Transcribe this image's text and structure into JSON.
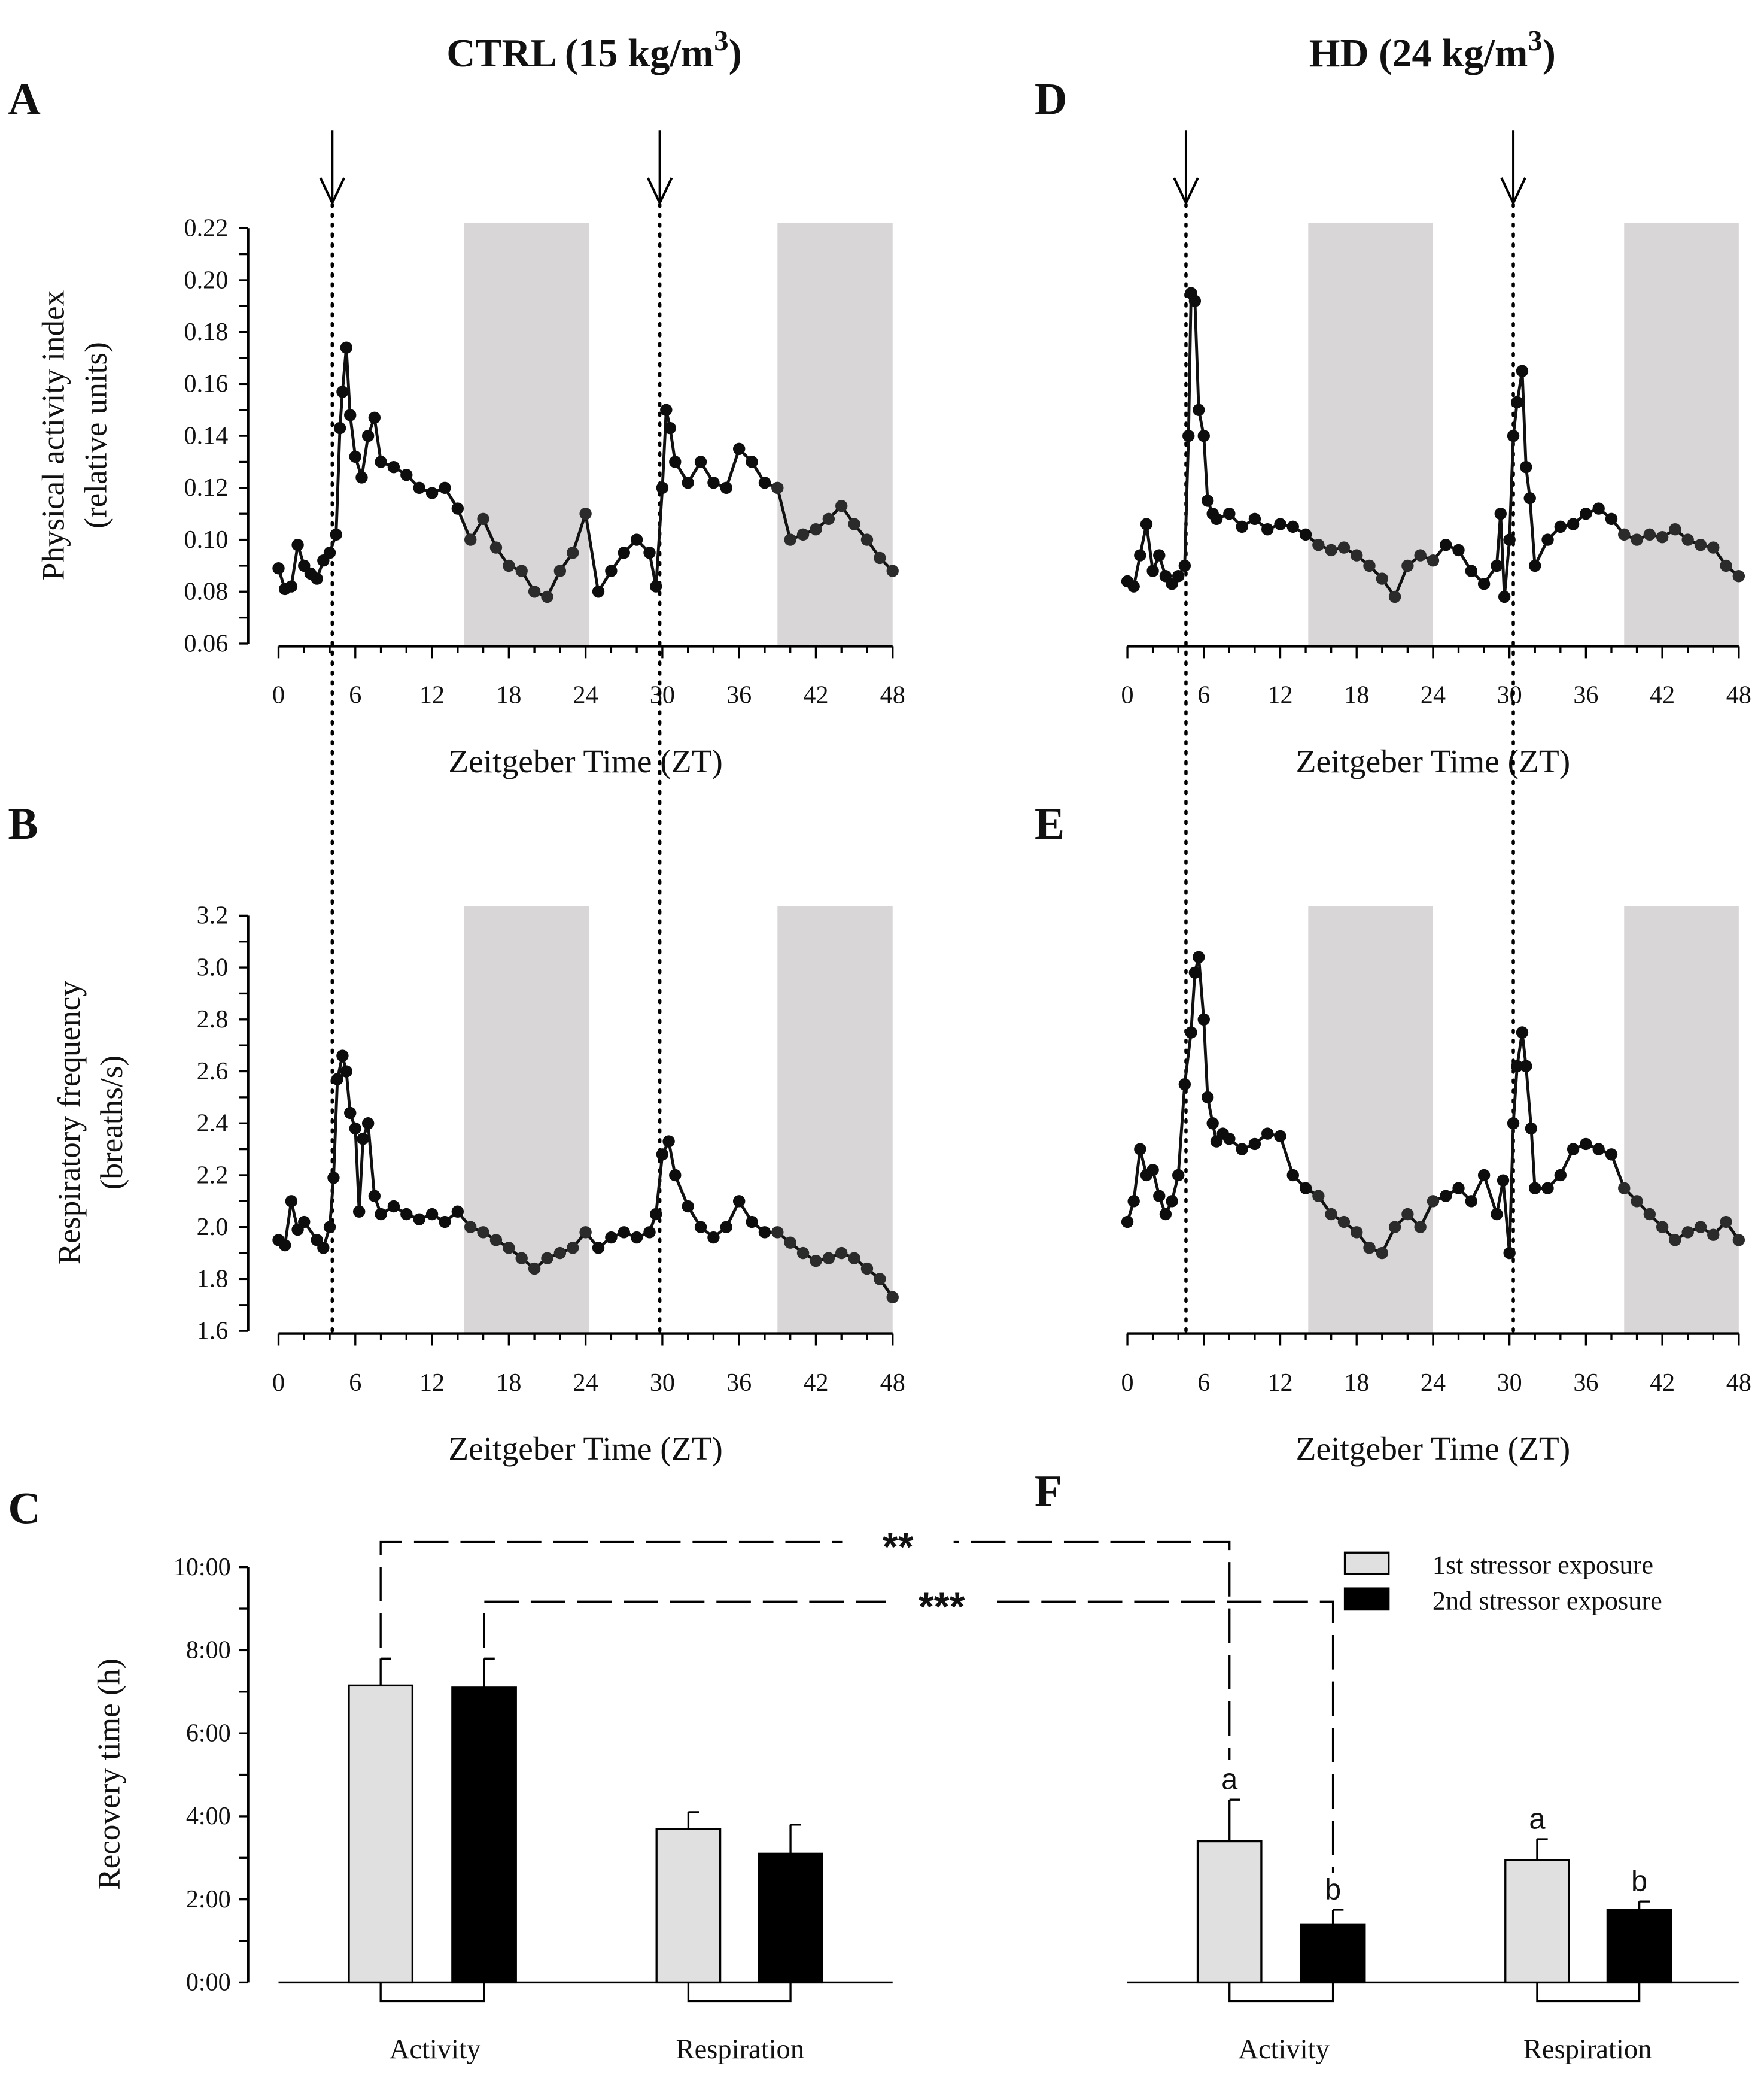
{
  "figure": {
    "columns": [
      {
        "title": "CTRL (15 kg/m",
        "sup": "3",
        "close": ")"
      },
      {
        "title": "HD (24 kg/m",
        "sup": "3",
        "close": ")"
      }
    ],
    "panel_letters": [
      "A",
      "B",
      "C",
      "D",
      "E",
      "F"
    ]
  },
  "chart_data": [
    {
      "id": "A",
      "type": "line",
      "group": "CTRL (15 kg/m3)",
      "ylabel": [
        "Physical activity index",
        "(relative units)"
      ],
      "xlabel": "Zeitgeber Time (ZT)",
      "ylim": [
        0.06,
        0.22
      ],
      "xlim": [
        0,
        48
      ],
      "yticks": [
        "0.06",
        "0.08",
        "0.10",
        "0.12",
        "0.14",
        "0.16",
        "0.18",
        "0.20",
        "0.22"
      ],
      "xticks": [
        "0",
        "6",
        "12",
        "18",
        "24",
        "30",
        "36",
        "42",
        "48"
      ],
      "dark_phase": [
        [
          14.5,
          24.3
        ],
        [
          39,
          48
        ]
      ],
      "stressor_times": [
        4.2,
        29.8
      ],
      "x": [
        0,
        0.5,
        1,
        1.5,
        2,
        2.5,
        3,
        3.5,
        4,
        4.5,
        4.8,
        5,
        5.3,
        5.6,
        6,
        6.5,
        7,
        7.5,
        8,
        9,
        10,
        11,
        12,
        13,
        14,
        15,
        16,
        17,
        18,
        19,
        20,
        21,
        22,
        23,
        24,
        25,
        26,
        27,
        28,
        29,
        29.5,
        30,
        30.3,
        30.6,
        31,
        32,
        33,
        34,
        35,
        36,
        37,
        38,
        39,
        40,
        41,
        42,
        43,
        44,
        45,
        46,
        47,
        48
      ],
      "y": [
        0.089,
        0.081,
        0.082,
        0.098,
        0.09,
        0.087,
        0.085,
        0.092,
        0.095,
        0.102,
        0.143,
        0.157,
        0.174,
        0.148,
        0.132,
        0.124,
        0.14,
        0.147,
        0.13,
        0.128,
        0.125,
        0.12,
        0.118,
        0.12,
        0.112,
        0.1,
        0.108,
        0.097,
        0.09,
        0.088,
        0.08,
        0.078,
        0.088,
        0.095,
        0.11,
        0.08,
        0.088,
        0.095,
        0.1,
        0.095,
        0.082,
        0.12,
        0.15,
        0.143,
        0.13,
        0.122,
        0.13,
        0.122,
        0.12,
        0.135,
        0.13,
        0.122,
        0.12,
        0.1,
        0.102,
        0.104,
        0.108,
        0.113,
        0.106,
        0.1,
        0.093,
        0.088
      ]
    },
    {
      "id": "B",
      "type": "line",
      "group": "CTRL (15 kg/m3)",
      "ylabel": [
        "Respiratory frequency",
        "(breaths/s)"
      ],
      "xlabel": "Zeitgeber Time (ZT)",
      "ylim": [
        1.6,
        3.2
      ],
      "xlim": [
        0,
        48
      ],
      "yticks": [
        "1.6",
        "1.8",
        "2.0",
        "2.2",
        "2.4",
        "2.6",
        "2.8",
        "3.0",
        "3.2"
      ],
      "xticks": [
        "0",
        "6",
        "12",
        "18",
        "24",
        "30",
        "36",
        "42",
        "48"
      ],
      "dark_phase": [
        [
          14.5,
          24.3
        ],
        [
          39,
          48
        ]
      ],
      "stressor_times": [
        4.2,
        29.8
      ],
      "x": [
        0,
        0.5,
        1,
        1.5,
        2,
        3,
        3.5,
        4,
        4.3,
        4.6,
        5,
        5.3,
        5.6,
        6,
        6.3,
        6.6,
        7,
        7.5,
        8,
        9,
        10,
        11,
        12,
        13,
        14,
        15,
        16,
        17,
        18,
        19,
        20,
        21,
        22,
        23,
        24,
        25,
        26,
        27,
        28,
        29,
        29.5,
        30,
        30.5,
        31,
        32,
        33,
        34,
        35,
        36,
        37,
        38,
        39,
        40,
        41,
        42,
        43,
        44,
        45,
        46,
        47,
        48
      ],
      "y": [
        1.95,
        1.93,
        2.1,
        1.99,
        2.02,
        1.95,
        1.92,
        2.0,
        2.19,
        2.57,
        2.66,
        2.6,
        2.44,
        2.38,
        2.06,
        2.34,
        2.4,
        2.12,
        2.05,
        2.08,
        2.05,
        2.03,
        2.05,
        2.02,
        2.06,
        2.0,
        1.98,
        1.95,
        1.92,
        1.88,
        1.84,
        1.88,
        1.9,
        1.92,
        1.98,
        1.92,
        1.96,
        1.98,
        1.96,
        1.98,
        2.05,
        2.28,
        2.33,
        2.2,
        2.08,
        2.0,
        1.96,
        2.0,
        2.1,
        2.02,
        1.98,
        1.98,
        1.94,
        1.9,
        1.87,
        1.88,
        1.9,
        1.88,
        1.84,
        1.8,
        1.73
      ]
    },
    {
      "id": "D",
      "type": "line",
      "group": "HD (24 kg/m3)",
      "xlabel": "Zeitgeber Time (ZT)",
      "ylim": [
        0.06,
        0.22
      ],
      "xlim": [
        0,
        48
      ],
      "xticks": [
        "0",
        "6",
        "12",
        "18",
        "24",
        "30",
        "36",
        "42",
        "48"
      ],
      "dark_phase": [
        [
          14.2,
          24
        ],
        [
          39,
          48
        ]
      ],
      "stressor_times": [
        4.6,
        30.3
      ],
      "x": [
        0,
        0.5,
        1,
        1.5,
        2,
        2.5,
        3,
        3.5,
        4,
        4.5,
        4.8,
        5,
        5.3,
        5.6,
        6,
        6.3,
        6.7,
        7,
        8,
        9,
        10,
        11,
        12,
        13,
        14,
        15,
        16,
        17,
        18,
        19,
        20,
        21,
        22,
        23,
        24,
        25,
        26,
        27,
        28,
        29,
        29.3,
        29.6,
        30,
        30.3,
        30.6,
        31,
        31.3,
        31.6,
        32,
        33,
        34,
        35,
        36,
        37,
        38,
        39,
        40,
        41,
        42,
        43,
        44,
        45,
        46,
        47,
        48
      ],
      "y": [
        0.084,
        0.082,
        0.094,
        0.106,
        0.088,
        0.094,
        0.086,
        0.083,
        0.086,
        0.09,
        0.14,
        0.195,
        0.192,
        0.15,
        0.14,
        0.115,
        0.11,
        0.108,
        0.11,
        0.105,
        0.108,
        0.104,
        0.106,
        0.105,
        0.102,
        0.098,
        0.096,
        0.097,
        0.094,
        0.09,
        0.085,
        0.078,
        0.09,
        0.094,
        0.092,
        0.098,
        0.096,
        0.088,
        0.083,
        0.09,
        0.11,
        0.078,
        0.1,
        0.14,
        0.153,
        0.165,
        0.128,
        0.116,
        0.09,
        0.1,
        0.105,
        0.106,
        0.11,
        0.112,
        0.108,
        0.102,
        0.1,
        0.102,
        0.101,
        0.104,
        0.1,
        0.098,
        0.097,
        0.09,
        0.086
      ]
    },
    {
      "id": "E",
      "type": "line",
      "group": "HD (24 kg/m3)",
      "xlabel": "Zeitgeber Time (ZT)",
      "ylim": [
        1.6,
        3.2
      ],
      "xlim": [
        0,
        48
      ],
      "xticks": [
        "0",
        "6",
        "12",
        "18",
        "24",
        "30",
        "36",
        "42",
        "48"
      ],
      "dark_phase": [
        [
          14.2,
          24
        ],
        [
          39,
          48
        ]
      ],
      "stressor_times": [
        4.6,
        30.3
      ],
      "x": [
        0,
        0.5,
        1,
        1.5,
        2,
        2.5,
        3,
        3.5,
        4,
        4.5,
        5,
        5.3,
        5.6,
        6,
        6.3,
        6.7,
        7,
        7.5,
        8,
        9,
        10,
        11,
        12,
        13,
        14,
        15,
        16,
        17,
        18,
        19,
        20,
        21,
        22,
        23,
        24,
        25,
        26,
        27,
        28,
        29,
        29.5,
        30,
        30.3,
        30.6,
        31,
        31.3,
        31.7,
        32,
        33,
        34,
        35,
        36,
        37,
        38,
        39,
        40,
        41,
        42,
        43,
        44,
        45,
        46,
        47,
        48
      ],
      "y": [
        2.02,
        2.1,
        2.3,
        2.2,
        2.22,
        2.12,
        2.05,
        2.1,
        2.2,
        2.55,
        2.75,
        2.98,
        3.04,
        2.8,
        2.5,
        2.4,
        2.33,
        2.36,
        2.34,
        2.3,
        2.32,
        2.36,
        2.35,
        2.2,
        2.15,
        2.12,
        2.05,
        2.02,
        1.98,
        1.92,
        1.9,
        2.0,
        2.05,
        2.0,
        2.1,
        2.12,
        2.15,
        2.1,
        2.2,
        2.05,
        2.18,
        1.9,
        2.4,
        2.62,
        2.75,
        2.62,
        2.38,
        2.15,
        2.15,
        2.2,
        2.3,
        2.32,
        2.3,
        2.28,
        2.15,
        2.1,
        2.05,
        2.0,
        1.95,
        1.98,
        2.0,
        1.97,
        2.02,
        1.95
      ]
    },
    {
      "id": "C-F",
      "type": "bar",
      "ylabel": "Recovery time (h)",
      "ylim": [
        0,
        10
      ],
      "yticks": [
        "0:00",
        "2:00",
        "4:00",
        "6:00",
        "8:00",
        "10:00"
      ],
      "legend": [
        "1st stressor exposure",
        "2nd stressor exposure"
      ],
      "legend_position": "top-right",
      "series_colors": [
        "#e0e0e0",
        "#000000"
      ],
      "groups": [
        {
          "panel": "C",
          "name": "CTRL (15 kg/m3)",
          "categories": [
            "Activity",
            "Respiration"
          ],
          "first": [
            7.15,
            3.7
          ],
          "first_err": [
            0.65,
            0.4
          ],
          "second": [
            7.1,
            3.1
          ],
          "second_err": [
            0.7,
            0.7
          ],
          "letters_first": [
            "",
            ""
          ],
          "letters_second": [
            "",
            ""
          ]
        },
        {
          "panel": "F",
          "name": "HD (24 kg/m3)",
          "categories": [
            "Activity",
            "Respiration"
          ],
          "first": [
            3.4,
            2.95
          ],
          "first_err": [
            1.0,
            0.5
          ],
          "second": [
            1.4,
            1.75
          ],
          "second_err": [
            0.35,
            0.2
          ],
          "letters_first": [
            "a",
            "a"
          ],
          "letters_second": [
            "b",
            "b"
          ]
        }
      ],
      "significance": [
        {
          "label": "**",
          "compare": "CTRL Activity 1st vs HD Activity 1st"
        },
        {
          "label": "***",
          "compare": "CTRL Activity 2nd vs HD Activity 2nd"
        }
      ]
    }
  ]
}
